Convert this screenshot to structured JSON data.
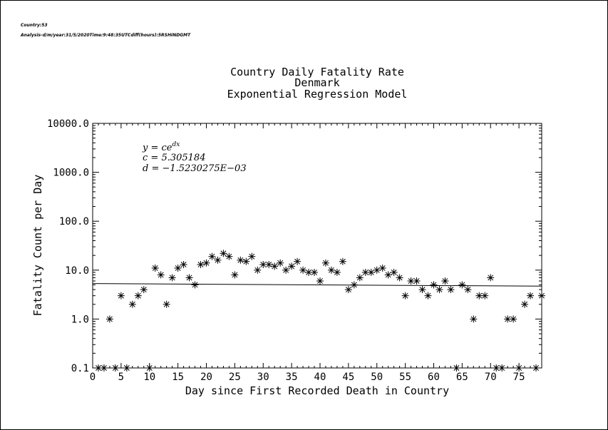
{
  "header": {
    "country_line": "Country:53",
    "analysis_line": "Analysis-d/m/year:31/5/2020Time:9:48:35UTCdiff(hours):5RSHINDGMT"
  },
  "chart_data": {
    "type": "scatter",
    "title_lines": [
      "Country Daily Fatality Rate",
      "Denmark",
      "Exponential Regression Model"
    ],
    "xlabel": "Day since First Recorded Death in Country",
    "ylabel": "Fatality Count per Day",
    "xlim": [
      0,
      79
    ],
    "ylim": [
      0.1,
      10000
    ],
    "yscale": "log",
    "grid": false,
    "x_ticks": [
      0,
      5,
      10,
      15,
      20,
      25,
      30,
      35,
      40,
      45,
      50,
      55,
      60,
      65,
      70,
      75
    ],
    "y_ticks": [
      0.1,
      1.0,
      10.0,
      100.0,
      1000.0,
      10000.0
    ],
    "y_tick_labels": [
      "0.1",
      "1.0",
      "10.0",
      "100.0",
      "1000.0",
      "10000.0"
    ],
    "marker": "asterisk",
    "annotation": {
      "formula": "y = ce",
      "formula_exp": "dx",
      "c_line": "c = 5.305184",
      "d_line": "d = −1.5230275E−03"
    },
    "fit": {
      "c": 5.305184,
      "d": -0.0015230275
    },
    "series": [
      {
        "points": [
          [
            1,
            0.1
          ],
          [
            2,
            0.1
          ],
          [
            3,
            1
          ],
          [
            4,
            0.1
          ],
          [
            5,
            3
          ],
          [
            6,
            0.1
          ],
          [
            7,
            2
          ],
          [
            8,
            3
          ],
          [
            9,
            4
          ],
          [
            10,
            0.1
          ],
          [
            11,
            11
          ],
          [
            12,
            8
          ],
          [
            13,
            2
          ],
          [
            14,
            7
          ],
          [
            15,
            11
          ],
          [
            16,
            13
          ],
          [
            17,
            7
          ],
          [
            18,
            5
          ],
          [
            19,
            13
          ],
          [
            20,
            14
          ],
          [
            21,
            19
          ],
          [
            22,
            16
          ],
          [
            23,
            22
          ],
          [
            24,
            19
          ],
          [
            25,
            8
          ],
          [
            26,
            16
          ],
          [
            27,
            15
          ],
          [
            28,
            19
          ],
          [
            29,
            10
          ],
          [
            30,
            13
          ],
          [
            31,
            13
          ],
          [
            32,
            12
          ],
          [
            33,
            14
          ],
          [
            34,
            10
          ],
          [
            35,
            12
          ],
          [
            36,
            15
          ],
          [
            37,
            10
          ],
          [
            38,
            9
          ],
          [
            39,
            9
          ],
          [
            40,
            6
          ],
          [
            41,
            14
          ],
          [
            42,
            10
          ],
          [
            43,
            9
          ],
          [
            44,
            15
          ],
          [
            45,
            4
          ],
          [
            46,
            5
          ],
          [
            47,
            7
          ],
          [
            48,
            9
          ],
          [
            49,
            9
          ],
          [
            50,
            10
          ],
          [
            51,
            11
          ],
          [
            52,
            8
          ],
          [
            53,
            9
          ],
          [
            54,
            7
          ],
          [
            55,
            3
          ],
          [
            56,
            6
          ],
          [
            57,
            6
          ],
          [
            58,
            4
          ],
          [
            59,
            3
          ],
          [
            60,
            5
          ],
          [
            61,
            4
          ],
          [
            62,
            6
          ],
          [
            63,
            4
          ],
          [
            64,
            0.1
          ],
          [
            65,
            5
          ],
          [
            66,
            4
          ],
          [
            67,
            1
          ],
          [
            68,
            3
          ],
          [
            69,
            3
          ],
          [
            70,
            7
          ],
          [
            71,
            0.1
          ],
          [
            72,
            0.1
          ],
          [
            73,
            1
          ],
          [
            74,
            1
          ],
          [
            75,
            0.1
          ],
          [
            76,
            2
          ],
          [
            77,
            3
          ],
          [
            78,
            0.1
          ],
          [
            79,
            3
          ]
        ]
      }
    ]
  }
}
